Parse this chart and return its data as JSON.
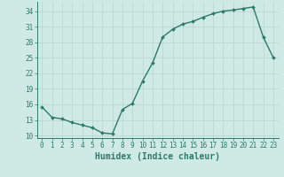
{
  "x": [
    0,
    1,
    2,
    3,
    4,
    5,
    6,
    7,
    8,
    9,
    10,
    11,
    12,
    13,
    14,
    15,
    16,
    17,
    18,
    19,
    20,
    21,
    22,
    23
  ],
  "y": [
    15.5,
    13.5,
    13.2,
    12.5,
    12.0,
    11.5,
    10.5,
    10.3,
    15.0,
    16.2,
    20.5,
    24.0,
    29.0,
    30.5,
    31.5,
    32.0,
    32.8,
    33.5,
    34.0,
    34.2,
    34.5,
    34.8,
    29.0,
    25.0
  ],
  "line_color": "#2d7a68",
  "bg_color": "#cfeae4",
  "grid_color": "#b8d9d2",
  "axis_color": "#2d7a68",
  "tick_label_color": "#2d7a68",
  "xlabel": "Humidex (Indice chaleur)",
  "xlabel_fontsize": 7,
  "yticks": [
    10,
    13,
    16,
    19,
    22,
    25,
    28,
    31,
    34
  ],
  "xticks": [
    0,
    1,
    2,
    3,
    4,
    5,
    6,
    7,
    8,
    9,
    10,
    11,
    12,
    13,
    14,
    15,
    16,
    17,
    18,
    19,
    20,
    21,
    22,
    23
  ],
  "ylim": [
    9.5,
    35.8
  ],
  "xlim": [
    -0.5,
    23.5
  ],
  "marker": "D",
  "marker_size": 2.0,
  "line_width": 1.0,
  "tick_fontsize": 5.5,
  "ytick_fontsize": 5.5
}
